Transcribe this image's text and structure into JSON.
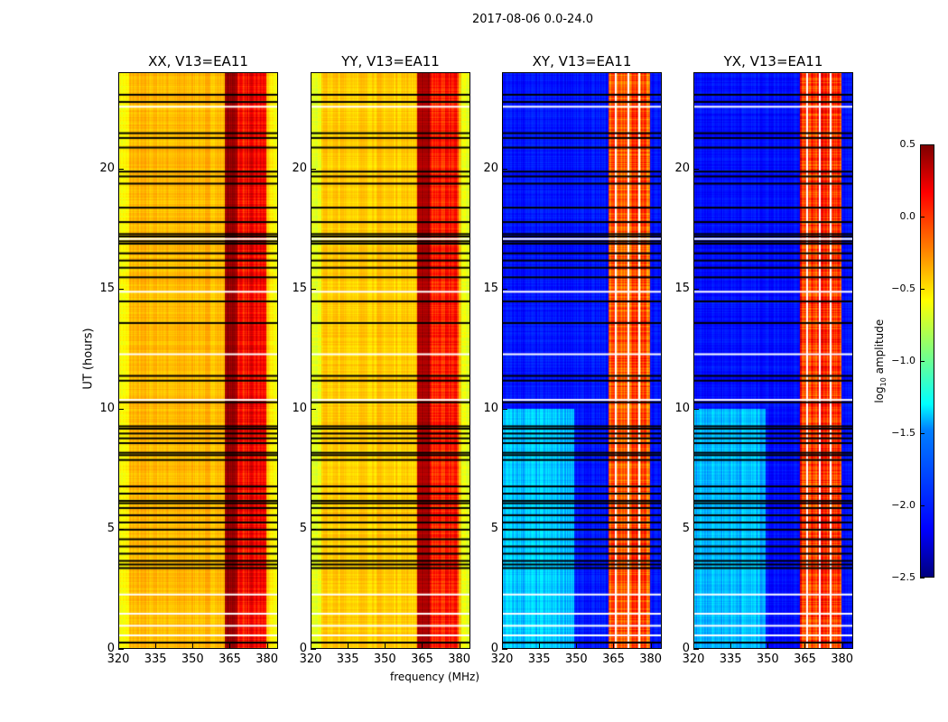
{
  "chart_data": {
    "type": "heatmap",
    "suptitle": "2017-08-06 0.0-24.0",
    "xlabel": "frequency (MHz)",
    "ylabel": "UT (hours)",
    "xlim": [
      320,
      384.5
    ],
    "ylim": [
      0,
      24
    ],
    "xticks": [
      "320",
      "335",
      "350",
      "365",
      "380"
    ],
    "xtick_values": [
      320,
      335,
      350,
      365,
      380
    ],
    "yticks": [
      "0",
      "5",
      "10",
      "15",
      "20"
    ],
    "ytick_values": [
      0,
      5,
      10,
      15,
      20
    ],
    "colormap": "jet",
    "colorbar": {
      "label_main": "log",
      "label_sub": "10",
      "label_rest": " amplitude",
      "range": [
        -2.5,
        0.5
      ],
      "ticks": [
        "0.5",
        "0.0",
        "−0.5",
        "−1.0",
        "−1.5",
        "−2.0",
        "−2.5"
      ],
      "tick_values": [
        0.5,
        0,
        -0.5,
        -1,
        -1.5,
        -2,
        -2.5
      ]
    },
    "panels": [
      {
        "title": "XX, V13=EA11",
        "kind": "parallel",
        "base": -0.55,
        "band": [
          363,
          368,
          0.3
        ],
        "band2": [
          368,
          380,
          -0.15
        ]
      },
      {
        "title": "YY, V13=EA11",
        "kind": "parallel",
        "base": -0.6,
        "band": [
          363,
          368,
          0.25
        ],
        "band2": [
          368,
          380,
          -0.2
        ]
      },
      {
        "title": "XY, V13=EA11",
        "kind": "cross",
        "base": -2.2,
        "band": [
          363,
          380,
          -0.5
        ],
        "band2": [
          333,
          340,
          -1.7
        ]
      },
      {
        "title": "YX, V13=EA11",
        "kind": "cross",
        "base": -2.2,
        "band": [
          363,
          380,
          -0.4
        ],
        "band2": [
          333,
          340,
          -1.7
        ]
      }
    ],
    "flagged_black_hours": [
      0.3,
      3.4,
      3.55,
      3.7,
      4.0,
      4.3,
      4.6,
      5.0,
      5.3,
      5.6,
      5.9,
      6.1,
      6.2,
      6.5,
      6.8,
      7.9,
      8.1,
      8.2,
      8.6,
      8.8,
      9.0,
      9.2,
      9.3,
      10.3,
      11.2,
      11.4,
      13.6,
      14.5,
      15.5,
      15.9,
      16.2,
      16.5,
      16.9,
      17.0,
      17.2,
      17.3,
      17.8,
      18.4,
      19.4,
      19.7,
      19.9,
      20.9,
      21.3,
      21.5,
      22.8,
      23.1
    ],
    "flagged_white_hours": [
      0.6,
      1.0,
      1.5,
      2.3,
      10.4,
      12.3,
      14.9,
      17.1,
      22.6
    ]
  }
}
